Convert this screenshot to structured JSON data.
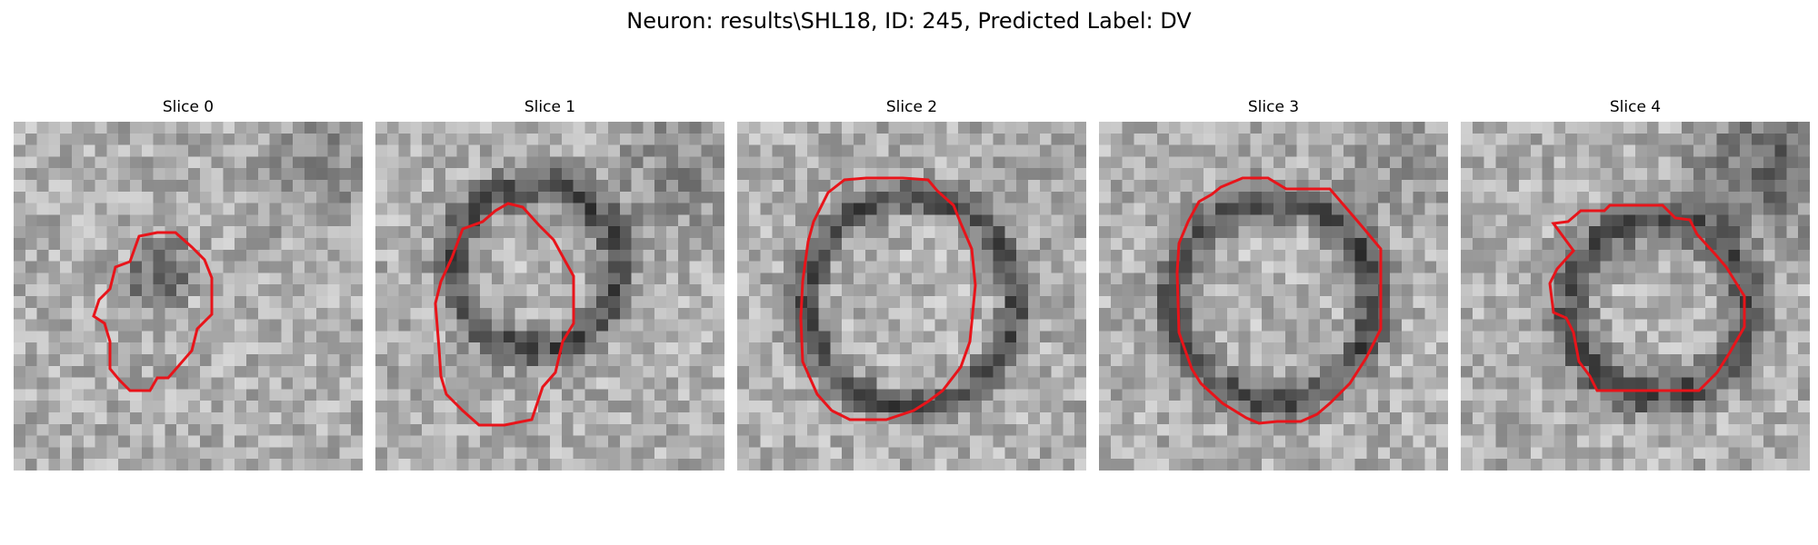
{
  "figure": {
    "title": "Neuron: results\\SHL18, ID: 245, Predicted Label: DV"
  },
  "colors": {
    "contour": "#e8141a",
    "background": "#ffffff"
  },
  "panels": [
    {
      "title": "Slice 0"
    },
    {
      "title": "Slice 1"
    },
    {
      "title": "Slice 2"
    },
    {
      "title": "Slice 3"
    },
    {
      "title": "Slice 4"
    }
  ]
}
